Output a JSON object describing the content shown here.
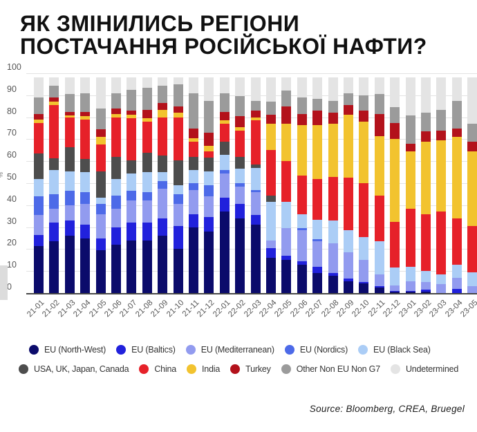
{
  "title": {
    "line1": "ЯК ЗМІНИЛИСЬ РЕГІОНИ",
    "line2": "ПОСТАЧАННЯ РОСІЙСЬКОЇ НАФТИ?"
  },
  "source": "Source: Bloomberg, CREA, Bruegel",
  "chart_data": {
    "type": "bar",
    "stacked": true,
    "title": "ЯК ЗМІНИЛИСЬ РЕГІОНИ ПОСТАЧАННЯ РОСІЙСЬКОЇ НАФТИ?",
    "xlabel": "",
    "ylabel": "%",
    "ylim": [
      0,
      100
    ],
    "yticks": [
      0,
      10,
      20,
      30,
      40,
      50,
      60,
      70,
      80,
      90,
      100
    ],
    "grid": true,
    "legend_position": "bottom",
    "categories": [
      "21-01",
      "21-02",
      "21-03",
      "21-04",
      "21-05",
      "21-06",
      "21-07",
      "21-08",
      "21-09",
      "21-10",
      "21-11",
      "21-12",
      "22-01",
      "22-02",
      "22-03",
      "22-04",
      "22-05",
      "22-06",
      "22-07",
      "22-08",
      "22-09",
      "22-10",
      "22-11",
      "22-12",
      "23-01",
      "23-02",
      "23-03",
      "23-04",
      "23-05"
    ],
    "series": [
      {
        "name": "EU (North-West)",
        "color": "#0b0b6b",
        "values": [
          21.5,
          23.5,
          26,
          25,
          19.5,
          22,
          24,
          24,
          26,
          20,
          30,
          28,
          37,
          34,
          31,
          16,
          15,
          13,
          9,
          8,
          5.5,
          4.5,
          2.5,
          0.5,
          0.5,
          0.5,
          0,
          0,
          0
        ]
      },
      {
        "name": "EU (Baltics)",
        "color": "#2121dc",
        "values": [
          5,
          8.5,
          7,
          6,
          5.5,
          8,
          8,
          8,
          8,
          10.5,
          6,
          6.5,
          6.5,
          6.5,
          4.5,
          4.5,
          2,
          1.5,
          3,
          1,
          1,
          0.5,
          0.5,
          0.5,
          0.5,
          1,
          0,
          2,
          0
        ]
      },
      {
        "name": "EU (Mediterranean)",
        "color": "#929bef",
        "values": [
          9,
          6.5,
          7,
          9.5,
          11,
          8.5,
          10,
          10,
          13.5,
          10,
          11,
          9.5,
          11,
          8,
          10.5,
          3.5,
          12.5,
          14,
          11.5,
          13.5,
          12,
          10,
          5.5,
          2.5,
          4.5,
          3.5,
          4,
          5,
          3
        ]
      },
      {
        "name": "EU (Nordics)",
        "color": "#4d6ae8",
        "values": [
          8.5,
          6.5,
          6.5,
          5.5,
          4.5,
          6,
          4.5,
          4,
          3.5,
          4.5,
          3,
          5,
          1.5,
          1.5,
          1,
          0,
          0,
          1,
          1,
          0,
          0,
          0,
          0,
          0,
          0,
          0,
          0,
          0,
          0
        ]
      },
      {
        "name": "EU (Black Sea)",
        "color": "#abcdf6",
        "values": [
          8,
          11,
          9,
          9,
          3,
          7.5,
          8,
          9,
          4,
          4,
          6,
          6.5,
          7,
          6.5,
          10,
          17.5,
          12,
          6.5,
          9,
          10.5,
          10,
          10.5,
          15,
          8,
          6.5,
          5,
          4.5,
          6,
          6.5
        ]
      },
      {
        "name": "USA, UK, Japan, Canada",
        "color": "#4d4d4d",
        "values": [
          11.5,
          5.5,
          11,
          6,
          12,
          10,
          6,
          9,
          7.5,
          11.5,
          6,
          6,
          6,
          5.5,
          1.5,
          3,
          0,
          0,
          0,
          0,
          0,
          0,
          0,
          0,
          0,
          0,
          0,
          0,
          0
        ]
      },
      {
        "name": "China",
        "color": "#e62129",
        "values": [
          14,
          24,
          13.5,
          18,
          12,
          18,
          19,
          14,
          17.5,
          19.5,
          7,
          3,
          8,
          12,
          20,
          20.5,
          18.5,
          17.5,
          18.5,
          20,
          24,
          24.5,
          21,
          21,
          26.5,
          26,
          28.5,
          21,
          21
        ]
      },
      {
        "name": "India",
        "color": "#f2c32f",
        "values": [
          1.5,
          1.5,
          1,
          1.5,
          3.5,
          1.5,
          1.5,
          1.5,
          3.5,
          2,
          1.5,
          2.5,
          1.5,
          1.5,
          1.5,
          12,
          17,
          23,
          24.5,
          24,
          28.5,
          28,
          27,
          37.5,
          26,
          33,
          32.5,
          37,
          34
        ]
      },
      {
        "name": "Turkey",
        "color": "#b3121b",
        "values": [
          2.5,
          2,
          1.5,
          2,
          3.5,
          2.5,
          2,
          4,
          3,
          3,
          4.5,
          6,
          4,
          5,
          3,
          4,
          8,
          5,
          6.5,
          5,
          4.5,
          5,
          10,
          7.5,
          3.5,
          4.5,
          4.5,
          4,
          4.5
        ]
      },
      {
        "name": "Other Non EU Non G7",
        "color": "#9b9b9b",
        "values": [
          7.5,
          5.5,
          8,
          8.5,
          9.5,
          7,
          9.5,
          10,
          8,
          10,
          16,
          14.5,
          8.5,
          9,
          4.5,
          6,
          7,
          7.5,
          5.5,
          5.5,
          5.5,
          7,
          9,
          7,
          13,
          8.5,
          9.5,
          12.5,
          8
        ]
      },
      {
        "name": "Undetermined",
        "color": "#e4e4e4",
        "values": [
          9,
          3.5,
          7.5,
          7,
          14,
          7,
          5.5,
          4.5,
          3.5,
          3,
          7,
          10.5,
          7,
          8.5,
          10.5,
          11,
          6,
          9,
          9.5,
          10.5,
          7,
          8,
          7.5,
          13.5,
          17,
          16,
          14.5,
          10.5,
          21
        ]
      }
    ],
    "legend_rows": [
      [
        0,
        1,
        2,
        3,
        4
      ],
      [
        5,
        6,
        7,
        8,
        9,
        10
      ]
    ]
  }
}
